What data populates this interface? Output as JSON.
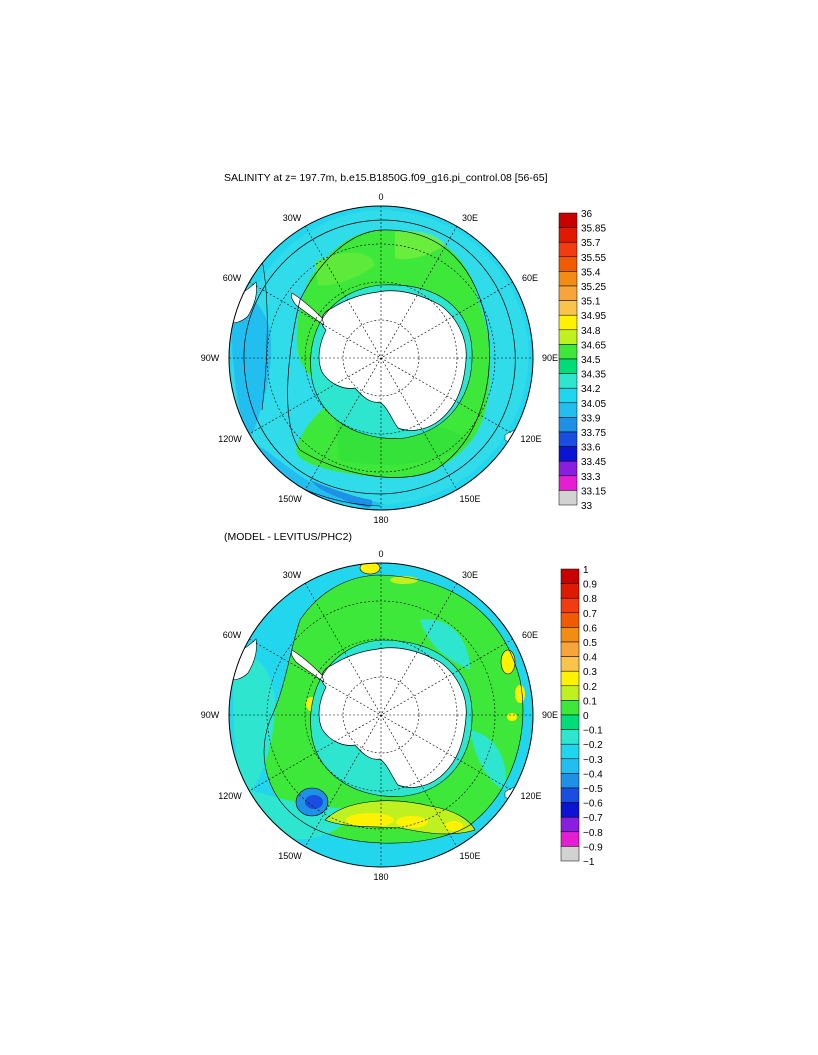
{
  "panels": [
    {
      "title": "SALINITY at z= 197.7m, b.e15.B1850G.f09_g16.pi_control.08 [56-65]",
      "lon_labels": [
        "0",
        "30E",
        "60E",
        "90E",
        "120E",
        "150E",
        "180",
        "150W",
        "120W",
        "90W",
        "60W",
        "30W"
      ],
      "colorbar": {
        "labels": [
          "36",
          "35.85",
          "35.7",
          "35.55",
          "35.4",
          "35.25",
          "35.1",
          "34.95",
          "34.8",
          "34.65",
          "34.5",
          "34.35",
          "34.2",
          "34.05",
          "33.9",
          "33.75",
          "33.6",
          "33.45",
          "33.3",
          "33.15",
          "33"
        ],
        "colors": [
          "#c80000",
          "#e01a00",
          "#f03c10",
          "#f05a00",
          "#f28c14",
          "#f7a53a",
          "#f9c44c",
          "#fef200",
          "#bff020",
          "#3ee83a",
          "#00dc78",
          "#2ee6d0",
          "#20d6ee",
          "#22bef0",
          "#1e90e6",
          "#1a4ee0",
          "#0a14d2",
          "#8a1ee0",
          "#e61ed2",
          "#d2d2d2",
          "#787878"
        ]
      }
    },
    {
      "title": "(MODEL - LEVITUS/PHC2)",
      "lon_labels": [
        "0",
        "30E",
        "60E",
        "90E",
        "120E",
        "150E",
        "180",
        "150W",
        "120W",
        "90W",
        "60W",
        "30W"
      ],
      "colorbar": {
        "labels": [
          "1",
          "0.9",
          "0.8",
          "0.7",
          "0.6",
          "0.5",
          "0.4",
          "0.3",
          "0.2",
          "0.1",
          "0",
          "−0.1",
          "−0.2",
          "−0.3",
          "−0.4",
          "−0.5",
          "−0.6",
          "−0.7",
          "−0.8",
          "−0.9",
          "−1"
        ],
        "colors": [
          "#c80000",
          "#e01a00",
          "#f03c10",
          "#f05a00",
          "#f28c14",
          "#f7a53a",
          "#f9c44c",
          "#fef200",
          "#bff020",
          "#3ee83a",
          "#00dc78",
          "#2ee6d0",
          "#20d6ee",
          "#22bef0",
          "#1e90e6",
          "#1a4ee0",
          "#0a14d2",
          "#8a1ee0",
          "#e61ed2",
          "#d2d2d2",
          "#787878"
        ]
      }
    }
  ]
}
